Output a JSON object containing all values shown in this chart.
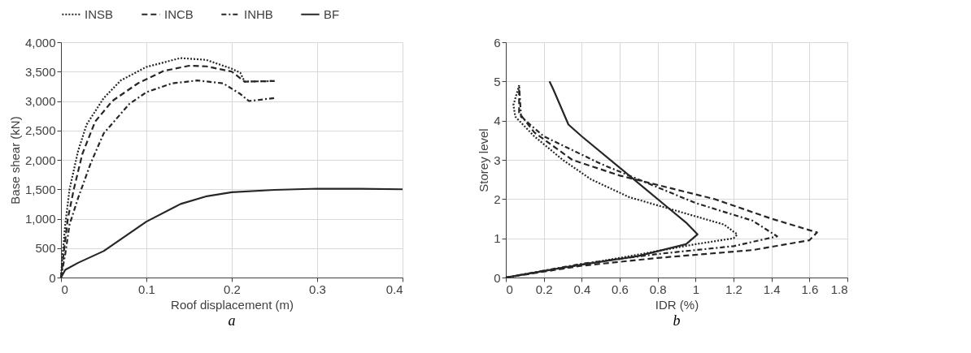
{
  "chart_data": [
    {
      "type": "line",
      "xlabel": "Roof displacement (m)",
      "ylabel": "Base shear (kN)",
      "annotations": [
        "a"
      ],
      "xlim": [
        0,
        0.4
      ],
      "ylim": [
        0,
        4000
      ],
      "xticks": [
        0,
        0.1,
        0.2,
        0.3,
        0.4
      ],
      "yticks": [
        0,
        500,
        {
          "value": 1000,
          "label": "1,000"
        },
        {
          "value": 1500,
          "label": "1,500"
        },
        {
          "value": 2000,
          "label": "2,000"
        },
        {
          "value": 2500,
          "label": "2,500"
        },
        {
          "value": 3000,
          "label": "3,000"
        },
        {
          "value": 3500,
          "label": "3,500"
        },
        {
          "value": 4000,
          "label": "4,000"
        }
      ],
      "grid": true,
      "legend": "top",
      "series": [
        {
          "name": "INSB",
          "color": "#262626",
          "line_style": "dotted",
          "x": [
            0,
            0.002,
            0.005,
            0.01,
            0.02,
            0.03,
            0.05,
            0.07,
            0.1,
            0.14,
            0.17,
            0.2,
            0.21,
            0.215,
            0.25
          ],
          "values": [
            0,
            400,
            900,
            1500,
            2150,
            2600,
            3050,
            3350,
            3580,
            3730,
            3700,
            3550,
            3480,
            3330,
            3340
          ]
        },
        {
          "name": "INCB",
          "color": "#262626",
          "line_style": "dashed",
          "x": [
            0,
            0.003,
            0.008,
            0.015,
            0.025,
            0.04,
            0.06,
            0.09,
            0.12,
            0.15,
            0.17,
            0.2,
            0.215,
            0.25
          ],
          "values": [
            0,
            400,
            1000,
            1500,
            2100,
            2650,
            3000,
            3300,
            3510,
            3600,
            3590,
            3500,
            3330,
            3340
          ]
        },
        {
          "name": "INHB",
          "color": "#262626",
          "line_style": "dashdot",
          "x": [
            0,
            0.005,
            0.01,
            0.02,
            0.035,
            0.05,
            0.08,
            0.1,
            0.13,
            0.16,
            0.19,
            0.21,
            0.22,
            0.25
          ],
          "values": [
            0,
            400,
            900,
            1350,
            1950,
            2450,
            2950,
            3150,
            3300,
            3350,
            3300,
            3120,
            3000,
            3050
          ]
        },
        {
          "name": "BF",
          "color": "#262626",
          "line_style": "solid",
          "x": [
            0,
            0.005,
            0.02,
            0.05,
            0.1,
            0.14,
            0.17,
            0.2,
            0.25,
            0.3,
            0.35,
            0.4
          ],
          "values": [
            0,
            130,
            250,
            450,
            950,
            1250,
            1380,
            1450,
            1490,
            1510,
            1510,
            1500
          ]
        }
      ]
    },
    {
      "type": "line",
      "xlabel": "IDR (%)",
      "ylabel": "Storey level",
      "annotations": [
        "b"
      ],
      "xlim": [
        0,
        1.8
      ],
      "ylim": [
        0,
        6
      ],
      "xticks": [
        0,
        0.2,
        0.4,
        0.6,
        0.8,
        1,
        1.2,
        1.4,
        1.6,
        1.8
      ],
      "yticks": [
        0,
        1,
        2,
        3,
        4,
        5,
        6
      ],
      "grid": true,
      "legend": "top",
      "series": [
        {
          "name": "INSB",
          "color": "#262626",
          "line_style": "dotted",
          "x": [
            0,
            0.3,
            0.6,
            1.0,
            1.2,
            1.22,
            1.15,
            0.9,
            0.65,
            0.45,
            0.3,
            0.15,
            0.05,
            0.04,
            0.07
          ],
          "values": [
            0,
            0.25,
            0.5,
            0.85,
            1.0,
            1.1,
            1.35,
            1.7,
            2.05,
            2.5,
            3.0,
            3.6,
            4.1,
            4.4,
            4.9
          ]
        },
        {
          "name": "INCB",
          "color": "#262626",
          "line_style": "dashed",
          "x": [
            0,
            0.4,
            0.8,
            1.3,
            1.6,
            1.64,
            1.4,
            1.1,
            0.85,
            0.6,
            0.35,
            0.15,
            0.07,
            0.07
          ],
          "values": [
            0,
            0.3,
            0.5,
            0.7,
            0.95,
            1.15,
            1.5,
            2.0,
            2.3,
            2.6,
            3.0,
            3.7,
            4.2,
            4.9
          ]
        },
        {
          "name": "INHB",
          "color": "#262626",
          "line_style": "dashdot",
          "x": [
            0,
            0.4,
            0.8,
            1.2,
            1.43,
            1.3,
            1.0,
            0.8,
            0.5,
            0.2,
            0.08,
            0.07
          ],
          "values": [
            0,
            0.35,
            0.6,
            0.8,
            1.05,
            1.45,
            1.9,
            2.3,
            2.9,
            3.6,
            4.1,
            4.9
          ]
        },
        {
          "name": "BF",
          "color": "#262626",
          "line_style": "solid",
          "x": [
            0,
            0.3,
            0.7,
            0.95,
            1.01,
            0.95,
            0.85,
            0.75,
            0.6,
            0.4,
            0.33,
            0.25,
            0.23
          ],
          "values": [
            0,
            0.25,
            0.55,
            0.85,
            1.1,
            1.4,
            1.8,
            2.2,
            2.8,
            3.6,
            3.9,
            4.8,
            5.0
          ]
        }
      ]
    }
  ]
}
